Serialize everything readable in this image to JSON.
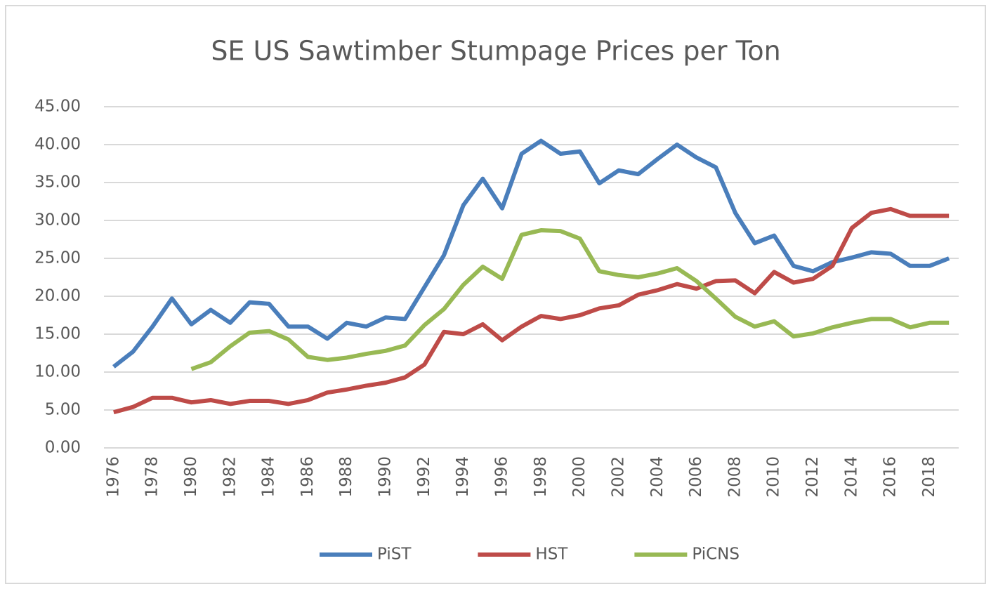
{
  "chart_data": {
    "type": "line",
    "title": "SE US Sawtimber Stumpage Prices per Ton",
    "categories": [
      "1976",
      null,
      "1978",
      null,
      "1980",
      null,
      "1982",
      null,
      "1984",
      null,
      "1986",
      null,
      "1988",
      null,
      "1990",
      null,
      "1992",
      null,
      "1994",
      null,
      "1996",
      null,
      "1998",
      null,
      "2000",
      null,
      "2002",
      null,
      "2004",
      null,
      "2006",
      null,
      "2008",
      null,
      "2010",
      null,
      "2012",
      null,
      "2014",
      null,
      "2016",
      null,
      "2018",
      null
    ],
    "series": [
      {
        "name": "PiST",
        "color": "#4a7ebb",
        "values": [
          10.7,
          12.7,
          16,
          19.7,
          16.3,
          18.2,
          16.5,
          19.2,
          19,
          16,
          16,
          14.4,
          16.5,
          16,
          17.2,
          17,
          21.2,
          25.4,
          32,
          35.5,
          31.6,
          38.8,
          40.5,
          38.8,
          39.1,
          34.9,
          36.6,
          36.1,
          38.1,
          40,
          38.3,
          37,
          31,
          27,
          28,
          24,
          23.3,
          24.5,
          25.1,
          25.8,
          25.6,
          24,
          24,
          25
        ]
      },
      {
        "name": "HST",
        "color": "#be4b48",
        "values": [
          4.7,
          5.4,
          6.6,
          6.6,
          6,
          6.3,
          5.8,
          6.2,
          6.2,
          5.8,
          6.3,
          7.3,
          7.7,
          8.2,
          8.6,
          9.3,
          11,
          15.3,
          15,
          16.3,
          14.2,
          16,
          17.4,
          17,
          17.5,
          18.4,
          18.8,
          20.2,
          20.8,
          21.6,
          21,
          22,
          22.1,
          20.4,
          23.2,
          21.8,
          22.3,
          24,
          29,
          31,
          31.5,
          30.6,
          30.6,
          30.6
        ]
      },
      {
        "name": "PiCNS",
        "color": "#98b954",
        "values": [
          null,
          null,
          null,
          null,
          10.4,
          11.3,
          13.4,
          15.2,
          15.4,
          14.3,
          12,
          11.6,
          11.9,
          12.4,
          12.8,
          13.5,
          16.2,
          18.3,
          21.5,
          23.9,
          22.3,
          28.1,
          28.7,
          28.6,
          27.6,
          23.3,
          22.8,
          22.5,
          23,
          23.7,
          22,
          19.7,
          17.3,
          16,
          16.7,
          14.7,
          15.1,
          15.9,
          16.5,
          17,
          17,
          15.9,
          16.5,
          16.5
        ]
      }
    ],
    "ylim": [
      0,
      45
    ],
    "yticks": [
      {
        "value": 0,
        "label": "0.00"
      },
      {
        "value": 5,
        "label": "5.00"
      },
      {
        "value": 10,
        "label": "10.00"
      },
      {
        "value": 15,
        "label": "15.00"
      },
      {
        "value": 20,
        "label": "20.00"
      },
      {
        "value": 25,
        "label": "25.00"
      },
      {
        "value": 30,
        "label": "30.00"
      },
      {
        "value": 35,
        "label": "35.00"
      },
      {
        "value": 40,
        "label": "40.00"
      },
      {
        "value": 45,
        "label": "45.00"
      }
    ],
    "grid": true,
    "legend": "bottom"
  }
}
